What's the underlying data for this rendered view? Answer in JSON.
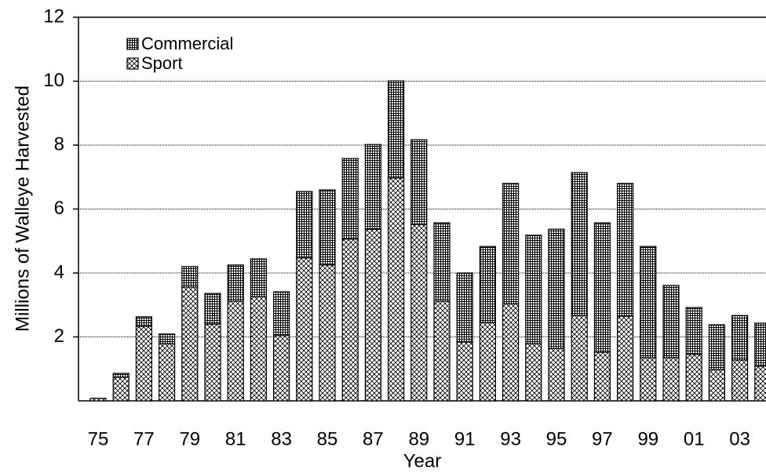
{
  "chart_data": {
    "type": "stacked-bar",
    "x_label": "Year",
    "y_label": "Millions of Walleye Harvested",
    "categories": [
      "75",
      null,
      "77",
      null,
      "79",
      null,
      "81",
      null,
      "83",
      null,
      "85",
      null,
      "87",
      null,
      "89",
      null,
      "91",
      null,
      "93",
      null,
      "95",
      null,
      "97",
      null,
      "99",
      null,
      "01",
      null,
      "03",
      null
    ],
    "series": [
      {
        "name": "Sport",
        "color": "#000000",
        "pattern": "diagonal",
        "values": [
          0.08,
          0.74,
          2.33,
          1.79,
          3.56,
          2.4,
          3.12,
          3.26,
          2.04,
          4.47,
          4.25,
          5.06,
          5.37,
          6.97,
          5.52,
          3.12,
          1.84,
          2.45,
          3.04,
          1.79,
          1.64,
          2.67,
          1.52,
          2.65,
          1.35,
          1.35,
          1.45,
          0.98,
          1.28,
          1.08
        ]
      },
      {
        "name": "Commercial",
        "color": "#000000",
        "pattern": "grid",
        "values": [
          0,
          0.12,
          0.3,
          0.3,
          0.64,
          0.96,
          1.13,
          1.18,
          1.37,
          2.08,
          2.35,
          2.52,
          2.65,
          3.04,
          2.65,
          2.45,
          2.16,
          2.38,
          3.76,
          3.39,
          3.73,
          4.47,
          4.05,
          4.15,
          3.48,
          2.26,
          1.47,
          1.4,
          1.39,
          1.35
        ]
      }
    ],
    "ylim": [
      0,
      12
    ],
    "yticks": [
      2,
      4,
      6,
      8,
      10,
      12
    ],
    "grid": true,
    "legend": "top-left"
  }
}
